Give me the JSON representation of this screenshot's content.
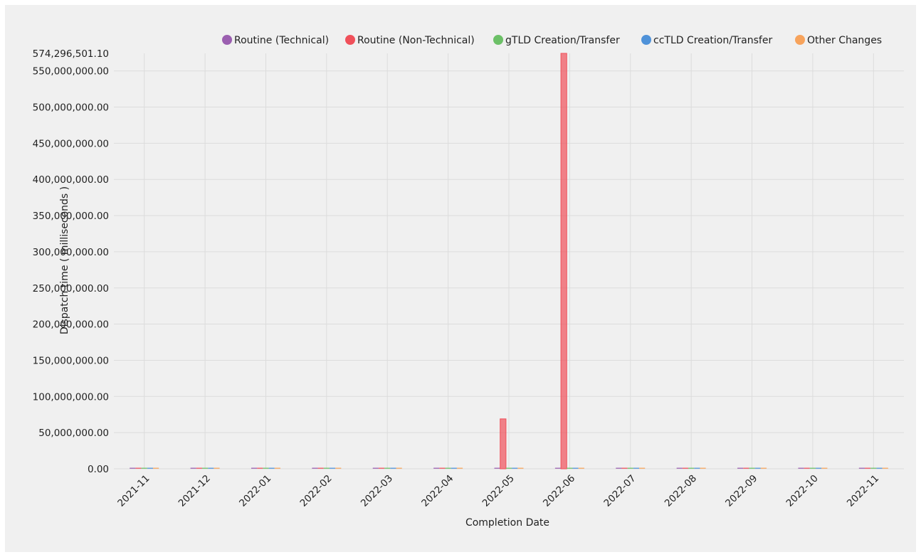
{
  "chart_data": {
    "type": "bar",
    "title": "",
    "xlabel": "Completion Date",
    "ylabel": "Dispatch time ( milliseconds )",
    "ylim": [
      0,
      574296501.1
    ],
    "ytick_top_label": "574,296,501.10",
    "yticks": [
      {
        "value": 0,
        "label": "0.00"
      },
      {
        "value": 50000000,
        "label": "50,000,000.00"
      },
      {
        "value": 100000000,
        "label": "100,000,000.00"
      },
      {
        "value": 150000000,
        "label": "150,000,000.00"
      },
      {
        "value": 200000000,
        "label": "200,000,000.00"
      },
      {
        "value": 250000000,
        "label": "250,000,000.00"
      },
      {
        "value": 300000000,
        "label": "300,000,000.00"
      },
      {
        "value": 350000000,
        "label": "350,000,000.00"
      },
      {
        "value": 400000000,
        "label": "400,000,000.00"
      },
      {
        "value": 450000000,
        "label": "450,000,000.00"
      },
      {
        "value": 500000000,
        "label": "500,000,000.00"
      },
      {
        "value": 550000000,
        "label": "550,000,000.00"
      }
    ],
    "categories": [
      "2021-11",
      "2021-12",
      "2022-01",
      "2022-02",
      "2022-03",
      "2022-04",
      "2022-05",
      "2022-06",
      "2022-07",
      "2022-08",
      "2022-09",
      "2022-10",
      "2022-11"
    ],
    "grid": true,
    "legend_position": "top-right",
    "series": [
      {
        "name": "Routine (Technical)",
        "color": "#9b5fb0",
        "values": [
          0,
          0,
          0,
          0,
          0,
          0,
          0,
          0,
          0,
          0,
          0,
          0,
          0
        ]
      },
      {
        "name": "Routine (Non-Technical)",
        "color": "#f0505a",
        "values": [
          0,
          0,
          0,
          0,
          0,
          0,
          69000000,
          574296501.1,
          0,
          0,
          0,
          0,
          0
        ]
      },
      {
        "name": "gTLD Creation/Transfer",
        "color": "#6cc067",
        "values": [
          0,
          0,
          0,
          0,
          0,
          0,
          0,
          0,
          0,
          0,
          0,
          0,
          0
        ]
      },
      {
        "name": "ccTLD Creation/Transfer",
        "color": "#4f92d9",
        "values": [
          0,
          0,
          0,
          0,
          0,
          0,
          0,
          0,
          0,
          0,
          0,
          0,
          0
        ]
      },
      {
        "name": "Other Changes",
        "color": "#f7a35c",
        "values": [
          0,
          0,
          0,
          0,
          0,
          0,
          0,
          0,
          0,
          0,
          0,
          0,
          0
        ]
      }
    ]
  }
}
